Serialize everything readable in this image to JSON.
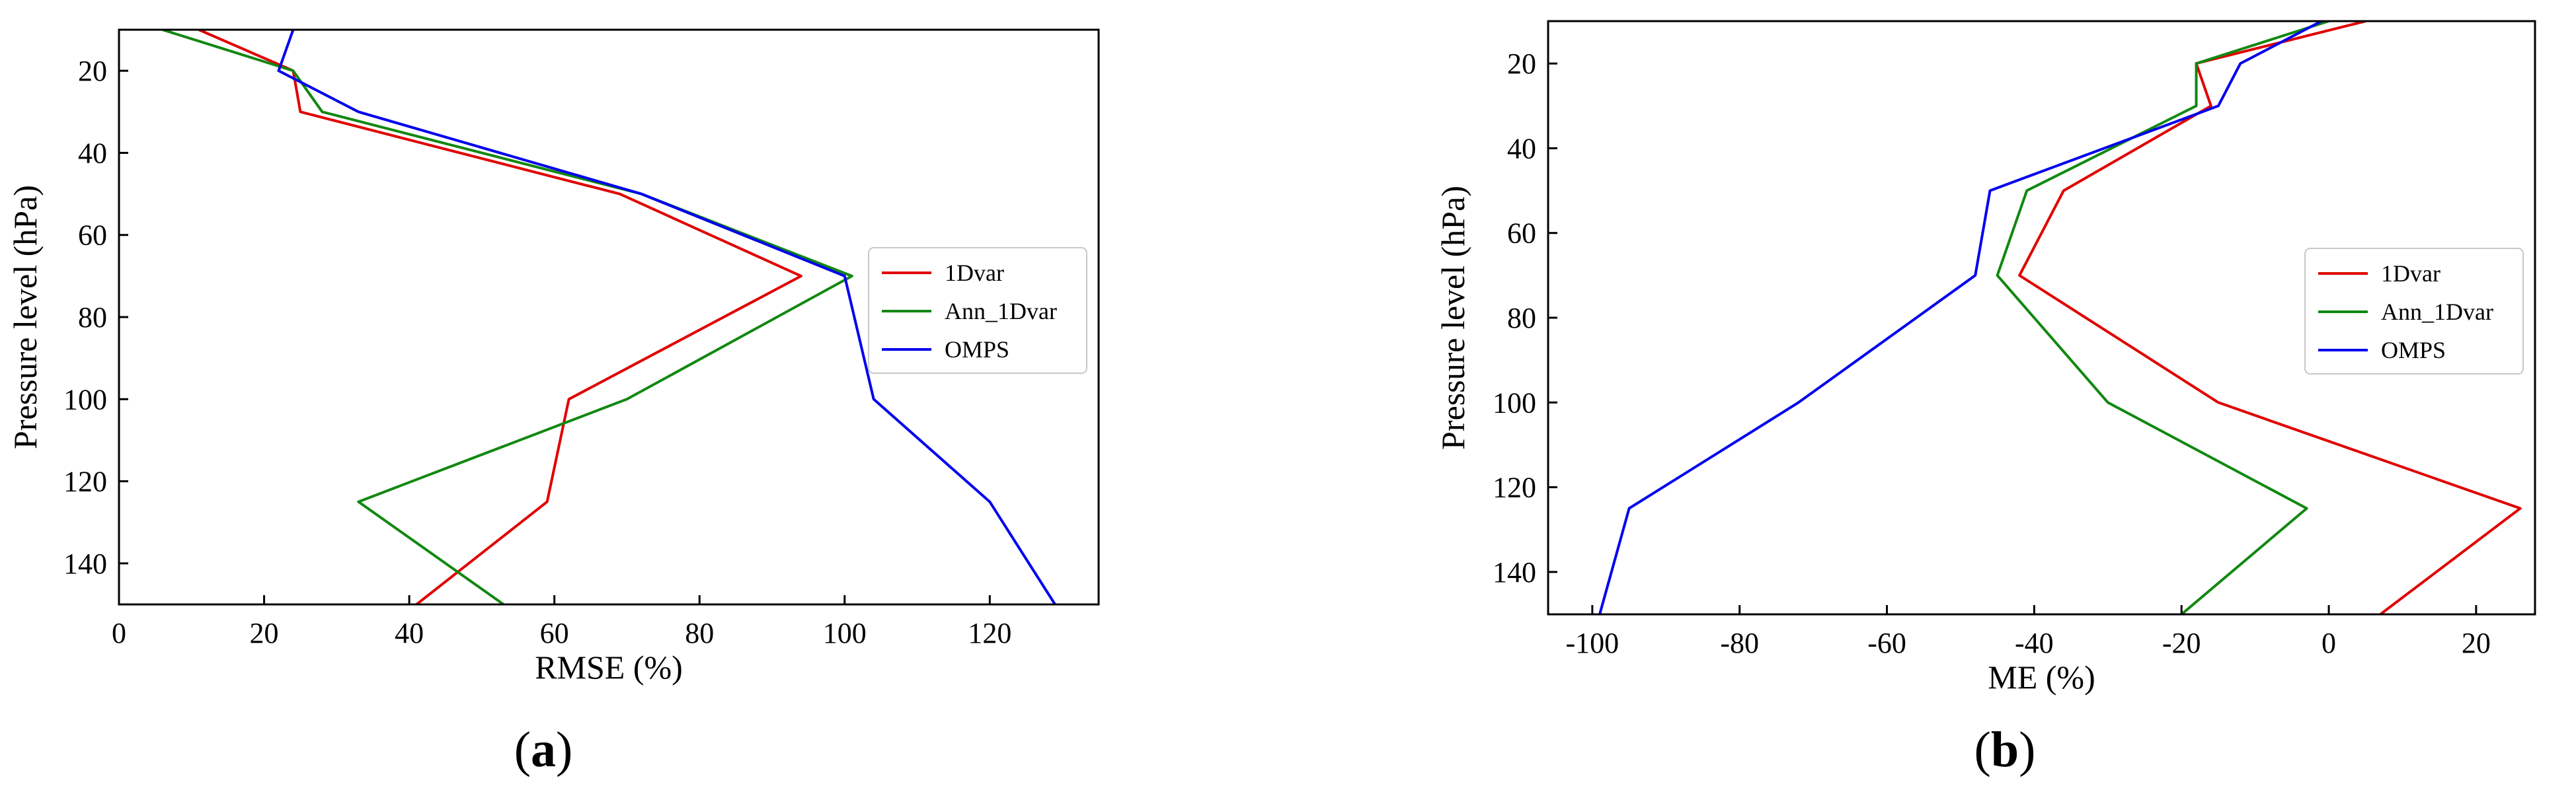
{
  "chart_data": [
    {
      "type": "line",
      "panel_label": "a",
      "xlabel": "RMSE (%)",
      "ylabel": "Pressure level (hPa)",
      "xlim": [
        0,
        135
      ],
      "ylim": [
        150,
        10
      ],
      "y_inverted": true,
      "xticks": [
        0,
        20,
        40,
        60,
        80,
        100,
        120
      ],
      "yticks": [
        20,
        40,
        60,
        80,
        100,
        120,
        140
      ],
      "grid": false,
      "legend_position": "center-right",
      "series": [
        {
          "name": "1Dvar",
          "color": "#e00000",
          "points": [
            [
              11,
              10
            ],
            [
              24,
              20
            ],
            [
              25,
              30
            ],
            [
              69,
              50
            ],
            [
              94,
              70
            ],
            [
              62,
              100
            ],
            [
              59,
              125
            ],
            [
              41,
              150
            ]
          ]
        },
        {
          "name": "Ann_1Dvar",
          "color": "#118811",
          "points": [
            [
              6,
              10
            ],
            [
              24,
              20
            ],
            [
              28,
              30
            ],
            [
              72,
              50
            ],
            [
              101,
              70
            ],
            [
              70,
              100
            ],
            [
              33,
              125
            ],
            [
              53,
              150
            ]
          ]
        },
        {
          "name": "OMPS",
          "color": "#0000ee",
          "points": [
            [
              24,
              10
            ],
            [
              22,
              20
            ],
            [
              33,
              30
            ],
            [
              72,
              50
            ],
            [
              100,
              70
            ],
            [
              104,
              100
            ],
            [
              120,
              125
            ],
            [
              129,
              150
            ]
          ]
        }
      ]
    },
    {
      "type": "line",
      "panel_label": "b",
      "xlabel": "ME (%)",
      "ylabel": "Pressure level (hPa)",
      "xlim": [
        -106,
        28
      ],
      "ylim": [
        150,
        10
      ],
      "y_inverted": true,
      "xticks": [
        -100,
        -80,
        -60,
        -40,
        -20,
        0,
        20
      ],
      "xtick_labels": [
        "-100",
        "-80",
        "-60",
        "-40",
        "-20",
        "0",
        "20"
      ],
      "yticks": [
        20,
        40,
        60,
        80,
        100,
        120,
        140
      ],
      "grid": false,
      "legend_position": "center-right",
      "series": [
        {
          "name": "1Dvar",
          "color": "#e00000",
          "points": [
            [
              5,
              10
            ],
            [
              -18,
              20
            ],
            [
              -16,
              30
            ],
            [
              -36,
              50
            ],
            [
              -42,
              70
            ],
            [
              -15,
              100
            ],
            [
              26,
              125
            ],
            [
              7,
              150
            ]
          ]
        },
        {
          "name": "Ann_1Dvar",
          "color": "#118811",
          "points": [
            [
              0,
              10
            ],
            [
              -18,
              20
            ],
            [
              -18,
              30
            ],
            [
              -41,
              50
            ],
            [
              -45,
              70
            ],
            [
              -30,
              100
            ],
            [
              -3,
              125
            ],
            [
              -20,
              150
            ]
          ]
        },
        {
          "name": "OMPS",
          "color": "#0000ee",
          "points": [
            [
              -1,
              10
            ],
            [
              -12,
              20
            ],
            [
              -15,
              30
            ],
            [
              -46,
              50
            ],
            [
              -48,
              70
            ],
            [
              -72,
              100
            ],
            [
              -95,
              125
            ],
            [
              -99,
              150
            ]
          ]
        }
      ]
    }
  ]
}
